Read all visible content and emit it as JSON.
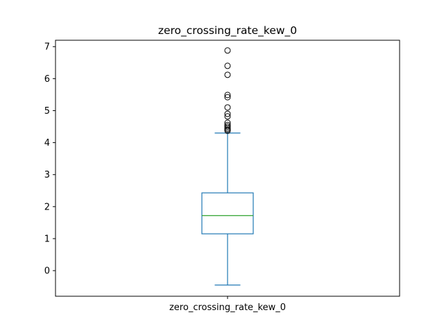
{
  "chart_data": {
    "type": "box",
    "title": "zero_crossing_rate_kew_0",
    "xlabel": "",
    "ylabel": "",
    "categories": [
      "zero_crossing_rate_kew_0"
    ],
    "ylim": [
      -0.8,
      7.2
    ],
    "yticks": [
      0,
      1,
      2,
      3,
      4,
      5,
      6,
      7
    ],
    "grid": false,
    "box": {
      "whisker_low": -0.45,
      "q1": 1.15,
      "median": 1.72,
      "q3": 2.43,
      "whisker_high": 4.3
    },
    "outliers": [
      4.37,
      4.41,
      4.45,
      4.5,
      4.55,
      4.62,
      4.82,
      4.9,
      5.1,
      5.42,
      5.49,
      6.12,
      6.4,
      6.88
    ],
    "colors": {
      "box": "#1f77b4",
      "median": "#2ca02c",
      "outlier_edge": "#000000",
      "axis": "#000000"
    }
  }
}
